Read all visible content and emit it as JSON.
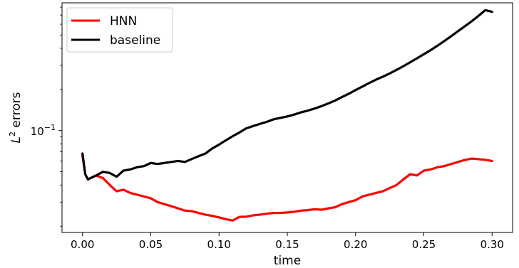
{
  "chart_data": {
    "type": "line",
    "xlabel": "time",
    "ylabel_base": "L",
    "ylabel_sup": "2",
    "ylabel_rest": " errors",
    "yscale": "log",
    "xlim": [
      -0.015,
      0.315
    ],
    "ylim": [
      0.018,
      0.86
    ],
    "x_ticks": [
      {
        "value": 0.0,
        "label": "0.00"
      },
      {
        "value": 0.05,
        "label": "0.05"
      },
      {
        "value": 0.1,
        "label": "0.10"
      },
      {
        "value": 0.15,
        "label": "0.15"
      },
      {
        "value": 0.2,
        "label": "0.20"
      },
      {
        "value": 0.25,
        "label": "0.25"
      },
      {
        "value": 0.3,
        "label": "0.30"
      }
    ],
    "y_major_ticks": [
      {
        "value": 0.1,
        "base": "10",
        "exp": "−1"
      }
    ],
    "y_minor_ticks": [
      0.02,
      0.03,
      0.04,
      0.05,
      0.06,
      0.07,
      0.08,
      0.09,
      0.2,
      0.3,
      0.4,
      0.5,
      0.6,
      0.7,
      0.8
    ],
    "grid": false,
    "legend_position": "top-left",
    "series": [
      {
        "name": "HNN",
        "color": "#ff0000",
        "x": [
          0.0,
          0.002,
          0.004,
          0.006,
          0.01,
          0.015,
          0.02,
          0.025,
          0.03,
          0.035,
          0.04,
          0.045,
          0.05,
          0.055,
          0.06,
          0.065,
          0.07,
          0.075,
          0.08,
          0.085,
          0.09,
          0.095,
          0.1,
          0.105,
          0.11,
          0.115,
          0.12,
          0.125,
          0.13,
          0.135,
          0.14,
          0.145,
          0.15,
          0.155,
          0.16,
          0.165,
          0.17,
          0.175,
          0.18,
          0.185,
          0.19,
          0.195,
          0.2,
          0.205,
          0.21,
          0.215,
          0.22,
          0.225,
          0.23,
          0.235,
          0.24,
          0.245,
          0.25,
          0.255,
          0.26,
          0.265,
          0.27,
          0.275,
          0.28,
          0.285,
          0.29,
          0.295,
          0.3
        ],
        "values": [
          0.066,
          0.048,
          0.044,
          0.045,
          0.047,
          0.045,
          0.04,
          0.036,
          0.037,
          0.035,
          0.034,
          0.033,
          0.032,
          0.03,
          0.029,
          0.028,
          0.027,
          0.026,
          0.0258,
          0.025,
          0.0243,
          0.0238,
          0.0232,
          0.0225,
          0.022,
          0.0234,
          0.0235,
          0.024,
          0.0243,
          0.0247,
          0.025,
          0.025,
          0.0252,
          0.0255,
          0.026,
          0.0262,
          0.0266,
          0.0264,
          0.027,
          0.0275,
          0.029,
          0.03,
          0.031,
          0.033,
          0.034,
          0.035,
          0.036,
          0.038,
          0.04,
          0.044,
          0.048,
          0.047,
          0.051,
          0.052,
          0.054,
          0.055,
          0.057,
          0.059,
          0.061,
          0.0625,
          0.0618,
          0.0612,
          0.06
        ]
      },
      {
        "name": "baseline",
        "color": "#000000",
        "x": [
          0.0,
          0.002,
          0.004,
          0.006,
          0.01,
          0.015,
          0.02,
          0.025,
          0.03,
          0.035,
          0.04,
          0.045,
          0.05,
          0.055,
          0.06,
          0.065,
          0.07,
          0.075,
          0.08,
          0.085,
          0.09,
          0.095,
          0.1,
          0.105,
          0.11,
          0.115,
          0.12,
          0.125,
          0.13,
          0.135,
          0.14,
          0.145,
          0.15,
          0.155,
          0.16,
          0.165,
          0.17,
          0.175,
          0.18,
          0.185,
          0.19,
          0.195,
          0.2,
          0.205,
          0.21,
          0.215,
          0.22,
          0.225,
          0.23,
          0.235,
          0.24,
          0.245,
          0.25,
          0.255,
          0.26,
          0.265,
          0.27,
          0.275,
          0.28,
          0.285,
          0.29,
          0.295,
          0.3
        ],
        "values": [
          0.068,
          0.048,
          0.044,
          0.045,
          0.047,
          0.05,
          0.049,
          0.046,
          0.051,
          0.052,
          0.054,
          0.055,
          0.058,
          0.057,
          0.058,
          0.059,
          0.06,
          0.059,
          0.062,
          0.065,
          0.068,
          0.074,
          0.079,
          0.085,
          0.091,
          0.097,
          0.104,
          0.108,
          0.112,
          0.116,
          0.121,
          0.124,
          0.127,
          0.131,
          0.136,
          0.14,
          0.145,
          0.151,
          0.158,
          0.166,
          0.176,
          0.186,
          0.198,
          0.21,
          0.223,
          0.236,
          0.248,
          0.262,
          0.278,
          0.296,
          0.316,
          0.338,
          0.362,
          0.388,
          0.418,
          0.452,
          0.49,
          0.533,
          0.58,
          0.63,
          0.69,
          0.76,
          0.74
        ]
      }
    ]
  }
}
